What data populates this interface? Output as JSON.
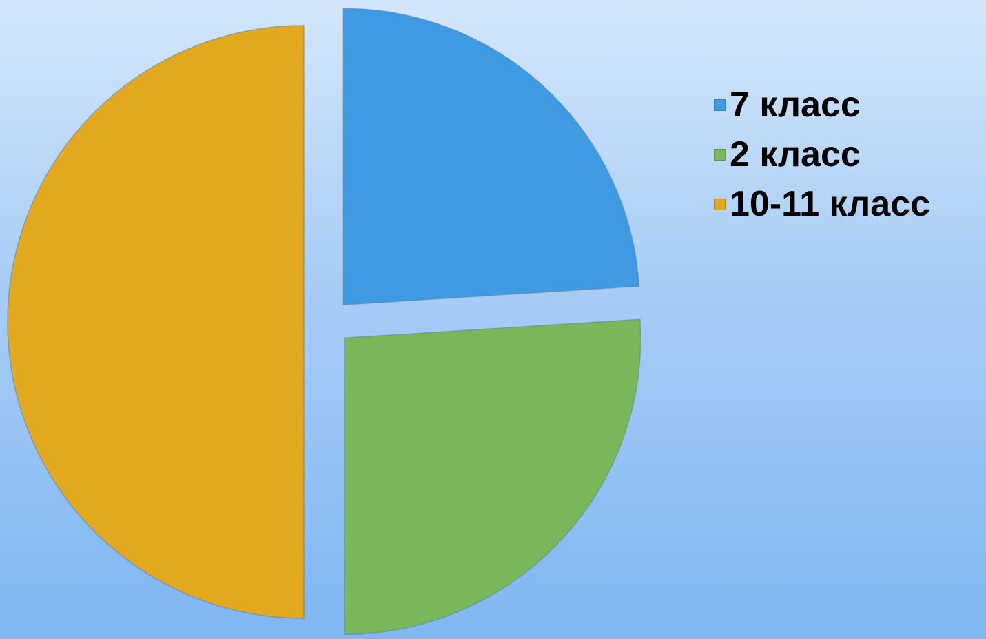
{
  "chart_data": {
    "type": "pie",
    "categories": [
      "7 класс",
      "2 класс",
      "10-11 класс"
    ],
    "values": [
      24,
      26,
      50
    ],
    "colors": [
      "#3e9be3",
      "#79b85a",
      "#e4aa1f"
    ],
    "start_angle_deg": 0,
    "direction": "clockwise",
    "exploded": true,
    "legend_position": "right",
    "title": ""
  },
  "legend": {
    "items": [
      {
        "label": "7 класс",
        "color": "#3e9be3"
      },
      {
        "label": "2 класс",
        "color": "#79b85a"
      },
      {
        "label": "10-11 класс",
        "color": "#e4aa1f"
      }
    ]
  }
}
